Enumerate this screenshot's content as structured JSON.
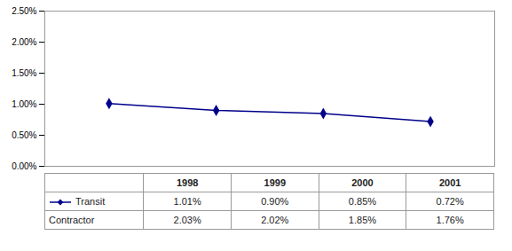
{
  "chart_data": {
    "type": "line",
    "x": [
      1998,
      1999,
      2000,
      2001
    ],
    "series": [
      {
        "name": "Transit",
        "type": "line",
        "color": "#00008B",
        "marker": "diamond",
        "values": [
          1.01,
          0.9,
          0.85,
          0.72
        ],
        "value_labels": [
          "1.01%",
          "0.90%",
          "0.85%",
          "0.72%"
        ]
      },
      {
        "name": "Contractor",
        "type": "table",
        "values": [
          2.03,
          2.02,
          1.85,
          1.76
        ],
        "value_labels": [
          "2.03%",
          "2.02%",
          "1.85%",
          "1.76%"
        ]
      }
    ],
    "xlim": [
      1997.4,
      2001.6
    ],
    "xticks": [],
    "ylim": [
      0.0,
      2.5
    ],
    "yticks": [
      {
        "value": 0.0,
        "label": "0.00%"
      },
      {
        "value": 0.5,
        "label": "0.50%"
      },
      {
        "value": 1.0,
        "label": "1.00%"
      },
      {
        "value": 1.5,
        "label": "1.50%"
      },
      {
        "value": 2.0,
        "label": "2.00%"
      },
      {
        "value": 2.5,
        "label": "2.50%"
      }
    ],
    "tick_labels": "y",
    "grid": false
  }
}
